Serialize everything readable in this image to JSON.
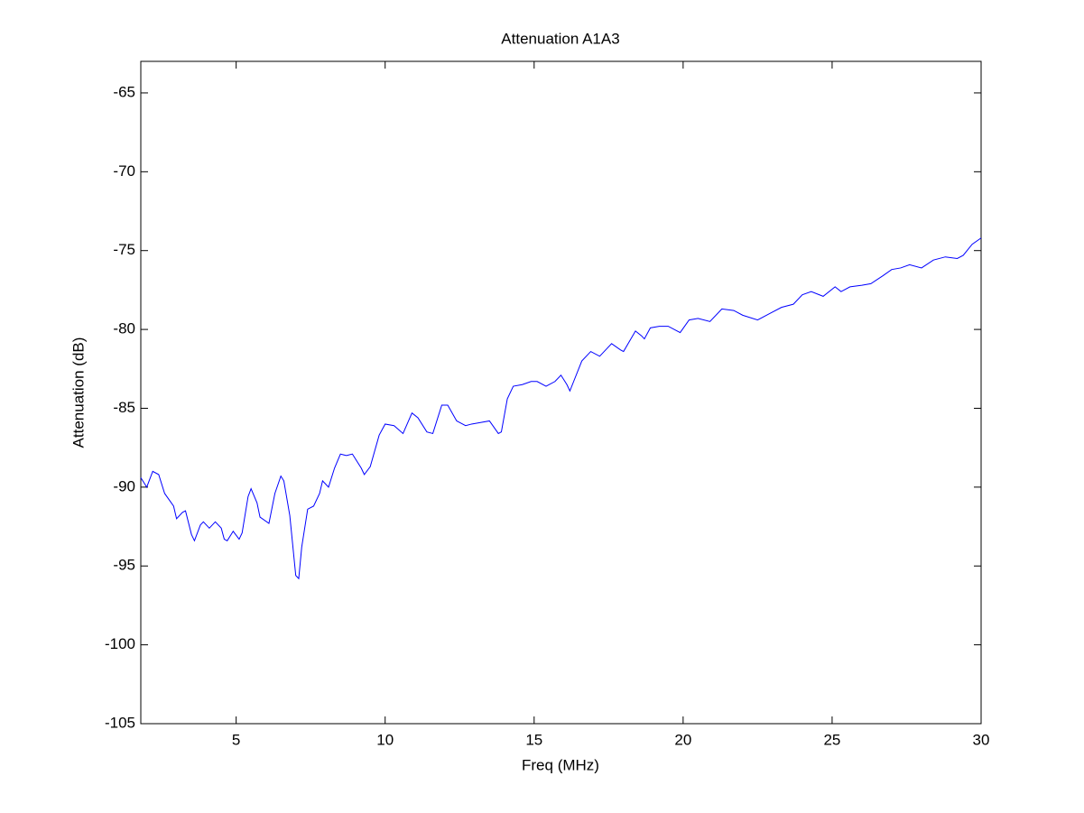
{
  "chart_data": {
    "type": "line",
    "title": "Attenuation A1A3",
    "x_label": "Freq (MHz)",
    "y_label": "Attenuation (dB)",
    "series": [
      {
        "color": "#0000ff",
        "x": [
          1.8,
          2.0,
          2.2,
          2.4,
          2.6,
          2.9,
          3.0,
          3.2,
          3.3,
          3.5,
          3.6,
          3.8,
          3.9,
          4.1,
          4.3,
          4.5,
          4.6,
          4.7,
          4.9,
          5.1,
          5.2,
          5.4,
          5.5,
          5.7,
          5.8,
          6.1,
          6.3,
          6.5,
          6.6,
          6.8,
          7.0,
          7.1,
          7.2,
          7.4,
          7.6,
          7.8,
          7.9,
          8.1,
          8.3,
          8.5,
          8.7,
          8.9,
          9.2,
          9.3,
          9.5,
          9.8,
          10.0,
          10.3,
          10.6,
          10.9,
          11.1,
          11.4,
          11.6,
          11.9,
          12.1,
          12.4,
          12.7,
          12.9,
          13.2,
          13.5,
          13.8,
          13.9,
          14.1,
          14.3,
          14.6,
          14.9,
          15.1,
          15.4,
          15.7,
          15.9,
          16.1,
          16.2,
          16.6,
          16.9,
          17.2,
          17.6,
          17.9,
          18.0,
          18.4,
          18.6,
          18.7,
          18.9,
          19.2,
          19.5,
          19.9,
          20.2,
          20.5,
          20.9,
          21.3,
          21.7,
          22.0,
          22.5,
          22.9,
          23.3,
          23.7,
          24.0,
          24.3,
          24.7,
          25.1,
          25.3,
          25.6,
          26.0,
          26.3,
          26.7,
          27.0,
          27.3,
          27.6,
          28.0,
          28.4,
          28.8,
          29.2,
          29.4,
          29.7,
          30.0
        ],
        "values": [
          -89.4,
          -90.0,
          -89.0,
          -89.2,
          -90.4,
          -91.2,
          -92.0,
          -91.6,
          -91.5,
          -93.0,
          -93.4,
          -92.4,
          -92.2,
          -92.6,
          -92.2,
          -92.6,
          -93.3,
          -93.4,
          -92.8,
          -93.3,
          -92.9,
          -90.6,
          -90.1,
          -91.0,
          -91.9,
          -92.3,
          -90.4,
          -89.3,
          -89.6,
          -91.8,
          -95.6,
          -95.8,
          -93.8,
          -91.4,
          -91.2,
          -90.4,
          -89.6,
          -90.0,
          -88.8,
          -87.9,
          -88.0,
          -87.9,
          -88.8,
          -89.2,
          -88.7,
          -86.7,
          -86.0,
          -86.1,
          -86.6,
          -85.3,
          -85.6,
          -86.5,
          -86.6,
          -84.8,
          -84.8,
          -85.8,
          -86.1,
          -86.0,
          -85.9,
          -85.8,
          -86.6,
          -86.5,
          -84.4,
          -83.6,
          -83.5,
          -83.3,
          -83.3,
          -83.6,
          -83.3,
          -82.9,
          -83.5,
          -83.9,
          -82.0,
          -81.4,
          -81.7,
          -80.9,
          -81.3,
          -81.4,
          -80.1,
          -80.4,
          -80.6,
          -79.9,
          -79.8,
          -79.8,
          -80.2,
          -79.4,
          -79.3,
          -79.5,
          -78.7,
          -78.8,
          -79.1,
          -79.4,
          -79.0,
          -78.6,
          -78.4,
          -77.8,
          -77.6,
          -77.9,
          -77.3,
          -77.6,
          -77.3,
          -77.2,
          -77.1,
          -76.6,
          -76.2,
          -76.1,
          -75.9,
          -76.1,
          -75.6,
          -75.4,
          -75.5,
          -75.3,
          -74.6,
          -74.2
        ]
      }
    ],
    "xlim": [
      1.8,
      30
    ],
    "ylim": [
      -105,
      -63
    ],
    "xticks": [
      5,
      10,
      15,
      20,
      25,
      30
    ],
    "yticks": [
      -105,
      -100,
      -95,
      -90,
      -85,
      -80,
      -75,
      -70,
      -65
    ],
    "grid": false
  }
}
